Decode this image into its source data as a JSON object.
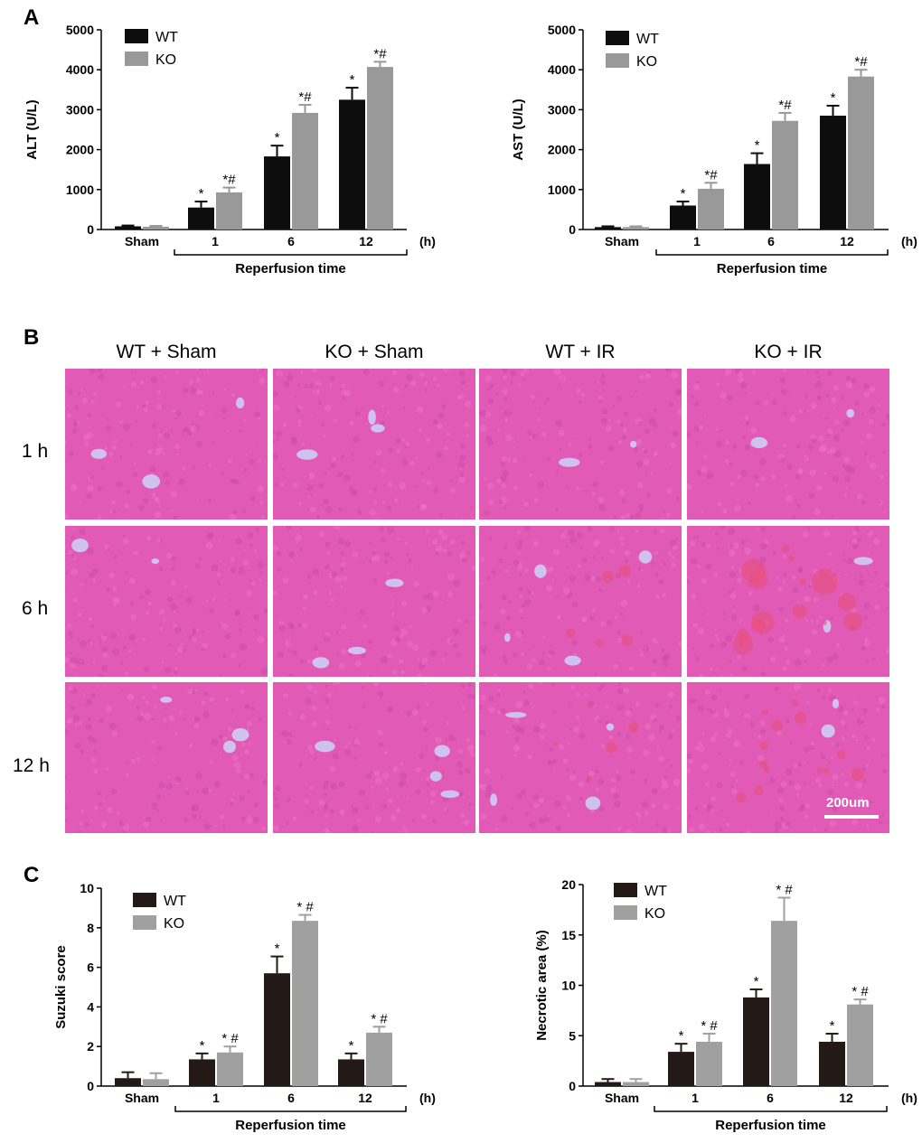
{
  "panels": {
    "a": "A",
    "b": "B",
    "c": "C"
  },
  "colors": {
    "wt_dark": "#0d0d0d",
    "ko": "#999999",
    "wt_brown": "#231916",
    "ko_light": "#a0a0a0",
    "tissue": "#e15ab6",
    "vessel": "#cfc2ee",
    "hemorrhage": "#e8507a"
  },
  "chart_data": [
    {
      "type": "bar",
      "ylabel": "ALT  (U/L)",
      "ylim": [
        0,
        5000
      ],
      "yticks": [
        "0",
        "1000",
        "2000",
        "3000",
        "4000",
        "5000"
      ],
      "categories": [
        "Sham",
        "1",
        "6",
        "12"
      ],
      "unit": "(h)",
      "group_label": "Reperfusion time",
      "legend": "top-left",
      "series": [
        {
          "name": "WT",
          "values": [
            80,
            550,
            1830,
            3250
          ],
          "err": [
            20,
            150,
            270,
            300
          ],
          "sig": [
            "",
            "*",
            "*",
            "*"
          ]
        },
        {
          "name": "KO",
          "values": [
            70,
            930,
            2920,
            4070
          ],
          "err": [
            20,
            120,
            200,
            130
          ],
          "sig": [
            "",
            "*#",
            "*#",
            "*#"
          ]
        }
      ]
    },
    {
      "type": "bar",
      "ylabel": "AST  (U/L)",
      "ylim": [
        0,
        5000
      ],
      "yticks": [
        "0",
        "1000",
        "2000",
        "3000",
        "4000",
        "5000"
      ],
      "categories": [
        "Sham",
        "1",
        "6",
        "12"
      ],
      "unit": "(h)",
      "group_label": "Reperfusion time",
      "legend": "top-left",
      "series": [
        {
          "name": "WT",
          "values": [
            60,
            600,
            1640,
            2850
          ],
          "err": [
            20,
            100,
            270,
            250
          ],
          "sig": [
            "",
            "*",
            "*",
            "*"
          ]
        },
        {
          "name": "KO",
          "values": [
            60,
            1020,
            2720,
            3830
          ],
          "err": [
            20,
            150,
            200,
            170
          ],
          "sig": [
            "",
            "*#",
            "*#",
            "*#"
          ]
        }
      ]
    },
    {
      "type": "bar",
      "ylabel": "Suzuki score",
      "ylim": [
        0,
        10
      ],
      "yticks": [
        "0",
        "2",
        "4",
        "6",
        "8",
        "10"
      ],
      "categories": [
        "Sham",
        "1",
        "6",
        "12"
      ],
      "unit": "(h)",
      "group_label": "Reperfusion time",
      "legend": "top-left",
      "series": [
        {
          "name": "WT",
          "values": [
            0.4,
            1.35,
            5.7,
            1.35
          ],
          "err": [
            0.3,
            0.3,
            0.85,
            0.3
          ],
          "sig": [
            "",
            "*",
            "*",
            "*"
          ]
        },
        {
          "name": "KO",
          "values": [
            0.35,
            1.7,
            8.35,
            2.7
          ],
          "err": [
            0.3,
            0.3,
            0.3,
            0.3
          ],
          "sig": [
            "",
            "* #",
            "* #",
            "* #"
          ]
        }
      ]
    },
    {
      "type": "bar",
      "ylabel": "Necrotic area (%)",
      "ylim": [
        0,
        20
      ],
      "yticks": [
        "0",
        "5",
        "10",
        "15",
        "20"
      ],
      "categories": [
        "Sham",
        "1",
        "6",
        "12"
      ],
      "unit": "(h)",
      "group_label": "Reperfusion time",
      "legend": "top-left",
      "series": [
        {
          "name": "WT",
          "values": [
            0.4,
            3.4,
            8.8,
            4.4
          ],
          "err": [
            0.3,
            0.8,
            0.8,
            0.8
          ],
          "sig": [
            "",
            "*",
            "*",
            "*"
          ]
        },
        {
          "name": "KO",
          "values": [
            0.4,
            4.4,
            16.4,
            8.1
          ],
          "err": [
            0.3,
            0.8,
            2.3,
            0.5
          ],
          "sig": [
            "",
            "* #",
            "* #",
            "* #"
          ]
        }
      ]
    }
  ],
  "histology": {
    "columns": [
      "WT + Sham",
      "KO + Sham",
      "WT + IR",
      "KO + IR"
    ],
    "rows": [
      "1 h",
      "6 h",
      "12 h"
    ],
    "scale_bar": "200um"
  }
}
